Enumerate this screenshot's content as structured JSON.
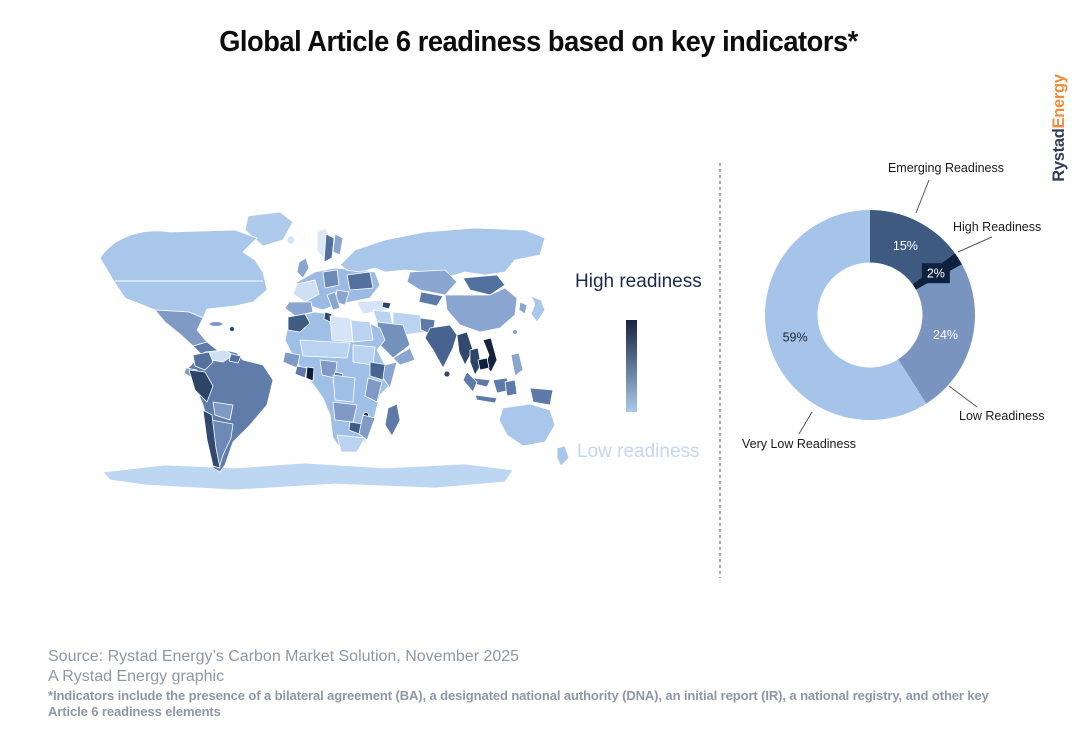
{
  "title": "Global Article 6 readiness based on key indicators*",
  "logo": {
    "part1": "Rystad",
    "part2": "Energy",
    "part1_color": "#2e3d59",
    "part2_color": "#f08a3c"
  },
  "map_legend": {
    "high_label": "High readiness",
    "low_label": "Low readiness",
    "high_color": "#16243f",
    "low_color": "#aac9ed"
  },
  "footer": {
    "source_line": "Source: Rystad Energy’s Carbon Market Solution, November 2025",
    "credit_line": "A Rystad Energy graphic",
    "footnote": "*Indicators include the presence of a bilateral agreement (BA), a designated national authority (DNA), an initial report (IR), a national registry, and other key Article 6 readiness elements"
  },
  "chart_data": [
    {
      "type": "choropleth",
      "subject": "World map shaded by Article 6 readiness level",
      "colorbar": {
        "top_label": "High readiness",
        "bottom_label": "Low readiness",
        "top_color": "#16243f",
        "bottom_color": "#aac9ed"
      },
      "palette_tiers": [
        "#0d1f3c",
        "#2c4566",
        "#46648f",
        "#5d7aa8",
        "#7e9ac5",
        "#8aa6d0",
        "#a9c7eb",
        "#d5e4f6"
      ],
      "shading_read_from_pixels": {
        "darkest_highest_readiness": [
          "Ghana",
          "Cambodia"
        ],
        "dark": [
          "Peru",
          "Chile",
          "Vietnam",
          "Thailand",
          "Myanmar",
          "India",
          "Ethiopia",
          "Zimbabwe",
          "Morocco",
          "Tunisia",
          "Ukraine",
          "Sweden",
          "Mongolia",
          "Malawi"
        ],
        "medium": [
          "Brazil",
          "Mexico",
          "Colombia",
          "Argentina",
          "China",
          "Kazakhstan",
          "Saudi Arabia",
          "Indonesia",
          "Madagascar",
          "Kenya",
          "Nigeria",
          "Senegal",
          "Spain",
          "United Kingdom"
        ],
        "light_lowest_readiness": [
          "United States",
          "Canada",
          "Russia",
          "Australia",
          "Greenland",
          "Japan",
          "South Africa",
          "Turkey",
          "Venezuela",
          "Libya",
          "Norway",
          "Antarctica"
        ]
      }
    },
    {
      "type": "donut",
      "direction": "clockwise",
      "start_angle_deg": 0,
      "value_format": "percent",
      "segments": [
        {
          "label": "Emerging Readiness",
          "value": 15,
          "color": "#3e5a80",
          "value_label_color": "#ffffff"
        },
        {
          "label": "High Readiness",
          "value": 2,
          "color": "#0e2240",
          "value_label_color": "#ffffff",
          "value_label_boxed": true
        },
        {
          "label": "Low Readiness",
          "value": 24,
          "color": "#7a94c0",
          "value_label_color": "#ffffff"
        },
        {
          "label": "Very Low Readiness",
          "value": 59,
          "color": "#a6c4e9",
          "value_label_color": "#1a2433"
        }
      ]
    }
  ]
}
